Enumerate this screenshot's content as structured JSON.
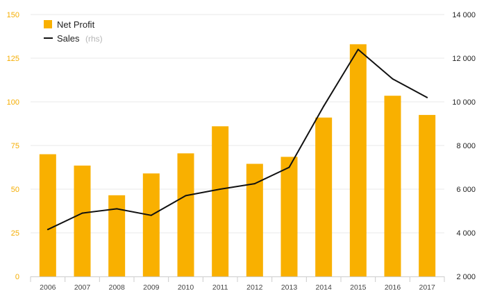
{
  "chart_data": {
    "type": "bar",
    "categories": [
      "2006",
      "2007",
      "2008",
      "2009",
      "2010",
      "2011",
      "2012",
      "2013",
      "2014",
      "2015",
      "2016",
      "2017"
    ],
    "series": [
      {
        "name": "Net Profit",
        "type": "bar",
        "axis": "left",
        "values": [
          70,
          63.5,
          46.5,
          59,
          70.5,
          86,
          64.5,
          68.5,
          91,
          133,
          103.5,
          92.5
        ]
      },
      {
        "name": "Sales",
        "note": "(rhs)",
        "type": "line",
        "axis": "right",
        "values": [
          4150,
          4900,
          5100,
          4800,
          5700,
          6000,
          6250,
          7000,
          9800,
          12400,
          11050,
          10200
        ]
      }
    ],
    "y_left": {
      "min": 0,
      "max": 150,
      "ticks": [
        "0",
        "25",
        "50",
        "75",
        "100",
        "125",
        "150"
      ]
    },
    "y_right": {
      "min": 2000,
      "max": 14000,
      "ticks": [
        "2 000",
        "4 000",
        "6 000",
        "8 000",
        "10 000",
        "12 000",
        "14 000"
      ]
    },
    "grid": true,
    "legend": "top-left",
    "colors": {
      "bar": "#f9b000",
      "line": "#111111",
      "left_axis_text": "#f5ad00",
      "grid": "#e9e9e9"
    }
  }
}
